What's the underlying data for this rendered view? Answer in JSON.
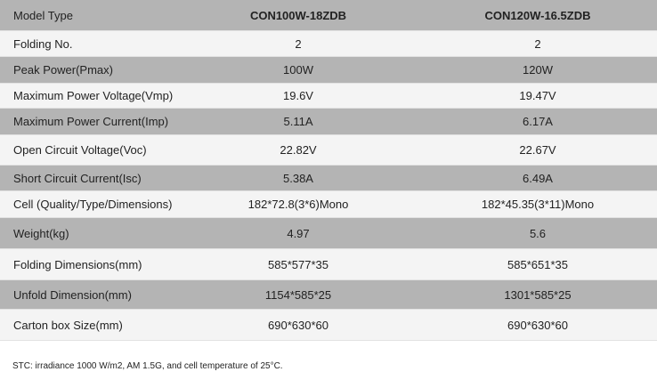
{
  "table": {
    "header": [
      "Model Type",
      "CON100W-18ZDB",
      "CON120W-16.5ZDB"
    ],
    "rows": [
      [
        "Folding No.",
        "2",
        "2"
      ],
      [
        "Peak Power(Pmax)",
        "100W",
        "120W"
      ],
      [
        "Maximum Power Voltage(Vmp)",
        "19.6V",
        "19.47V"
      ],
      [
        "Maximum Power Current(Imp)",
        "5.11A",
        "6.17A"
      ],
      [
        "Open Circuit Voltage(Voc)",
        "22.82V",
        "22.67V"
      ],
      [
        "Short Circuit Current(Isc)",
        "5.38A",
        "6.49A"
      ],
      [
        "Cell (Quality/Type/Dimensions)",
        "182*72.8(3*6)Mono",
        "182*45.35(3*11)Mono"
      ],
      [
        "Weight(kg)",
        "4.97",
        "5.6"
      ],
      [
        "Folding Dimensions(mm)",
        "585*577*35",
        "585*651*35"
      ],
      [
        "Unfold Dimension(mm)",
        "1154*585*25",
        "1301*585*25"
      ],
      [
        "Carton box Size(mm)",
        "690*630*60",
        "690*630*60"
      ]
    ]
  },
  "footnote": "STC: irradiance 1000 W/m2, AM 1.5G, and cell temperature of 25°C.",
  "colors": {
    "gray_row": "#b4b4b4",
    "light_row": "#f4f4f4"
  }
}
